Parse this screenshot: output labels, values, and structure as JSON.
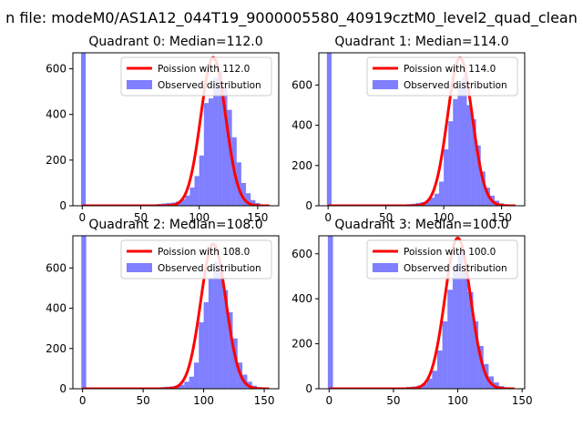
{
  "figure": {
    "suptitle": "n file: modeM0/AS1A12_044T19_9000005580_40919cztM0_level2_quad_clean"
  },
  "colors": {
    "hist": "#0000ff",
    "hist_alpha": 0.5,
    "fit": "#ff0000"
  },
  "chart_data": [
    {
      "type": "bar",
      "title": "Quadrant 0: Median=112.0",
      "xlim": [
        -8,
        168
      ],
      "ylim": [
        0,
        670
      ],
      "xticks": [
        0,
        50,
        100,
        150
      ],
      "yticks": [
        0,
        200,
        400,
        600
      ],
      "legend_position": "top-right",
      "fit_series": {
        "name": "Poission with 112.0",
        "mean": 112.0,
        "peak": 650
      },
      "hist_series": {
        "name": "Observed distribution",
        "bins": [
          [
            -1,
            3,
            670
          ],
          [
            0,
            60,
            0
          ],
          [
            60,
            64,
            5
          ],
          [
            64,
            68,
            8
          ],
          [
            68,
            72,
            10
          ],
          [
            72,
            76,
            12
          ],
          [
            76,
            80,
            14
          ],
          [
            80,
            84,
            18
          ],
          [
            84,
            88,
            28
          ],
          [
            88,
            92,
            45
          ],
          [
            92,
            96,
            80
          ],
          [
            96,
            100,
            130
          ],
          [
            100,
            104,
            220
          ],
          [
            104,
            108,
            450
          ],
          [
            108,
            112,
            470
          ],
          [
            112,
            116,
            560
          ],
          [
            116,
            120,
            590
          ],
          [
            120,
            124,
            520
          ],
          [
            124,
            128,
            420
          ],
          [
            128,
            132,
            300
          ],
          [
            132,
            136,
            190
          ],
          [
            136,
            140,
            100
          ],
          [
            140,
            144,
            55
          ],
          [
            144,
            148,
            25
          ],
          [
            148,
            152,
            12
          ],
          [
            152,
            156,
            6
          ],
          [
            156,
            160,
            3
          ]
        ]
      }
    },
    {
      "type": "bar",
      "title": "Quadrant 1: Median=114.0",
      "xlim": [
        -8,
        170
      ],
      "ylim": [
        0,
        760
      ],
      "xticks": [
        0,
        50,
        100,
        150
      ],
      "yticks": [
        0,
        200,
        400,
        600
      ],
      "legend_position": "top-right",
      "fit_series": {
        "name": "Poission with 114.0",
        "mean": 114.0,
        "peak": 735
      },
      "hist_series": {
        "name": "Observed distribution",
        "bins": [
          [
            -1,
            3,
            760
          ],
          [
            0,
            64,
            0
          ],
          [
            64,
            68,
            5
          ],
          [
            68,
            72,
            8
          ],
          [
            72,
            76,
            10
          ],
          [
            76,
            80,
            14
          ],
          [
            80,
            84,
            18
          ],
          [
            84,
            88,
            25
          ],
          [
            88,
            92,
            40
          ],
          [
            92,
            96,
            60
          ],
          [
            96,
            100,
            120
          ],
          [
            100,
            104,
            280
          ],
          [
            104,
            108,
            420
          ],
          [
            108,
            112,
            530
          ],
          [
            112,
            116,
            600
          ],
          [
            116,
            120,
            640
          ],
          [
            120,
            124,
            500
          ],
          [
            124,
            128,
            430
          ],
          [
            128,
            132,
            300
          ],
          [
            132,
            136,
            170
          ],
          [
            136,
            140,
            90
          ],
          [
            140,
            144,
            50
          ],
          [
            144,
            148,
            25
          ],
          [
            148,
            152,
            12
          ],
          [
            152,
            156,
            6
          ]
        ]
      }
    },
    {
      "type": "bar",
      "title": "Quadrant 2: Median=108.0",
      "xlim": [
        -8,
        162
      ],
      "ylim": [
        0,
        760
      ],
      "xticks": [
        0,
        50,
        100,
        150
      ],
      "yticks": [
        0,
        200,
        400,
        600
      ],
      "legend_position": "top-right",
      "fit_series": {
        "name": "Poission with 108.0",
        "mean": 108.0,
        "peak": 720
      },
      "hist_series": {
        "name": "Observed distribution",
        "bins": [
          [
            -1,
            3,
            760
          ],
          [
            0,
            60,
            0
          ],
          [
            60,
            64,
            5
          ],
          [
            64,
            68,
            8
          ],
          [
            68,
            72,
            10
          ],
          [
            72,
            76,
            12
          ],
          [
            76,
            80,
            15
          ],
          [
            80,
            84,
            20
          ],
          [
            84,
            88,
            35
          ],
          [
            88,
            92,
            60
          ],
          [
            92,
            96,
            130
          ],
          [
            96,
            100,
            330
          ],
          [
            100,
            104,
            430
          ],
          [
            104,
            108,
            550
          ],
          [
            108,
            112,
            630
          ],
          [
            112,
            116,
            580
          ],
          [
            116,
            120,
            490
          ],
          [
            120,
            124,
            380
          ],
          [
            124,
            128,
            250
          ],
          [
            128,
            132,
            130
          ],
          [
            132,
            136,
            70
          ],
          [
            136,
            140,
            35
          ],
          [
            140,
            144,
            15
          ],
          [
            144,
            148,
            8
          ],
          [
            148,
            152,
            4
          ]
        ]
      }
    },
    {
      "type": "bar",
      "title": "Quadrant 3: Median=100.0",
      "xlim": [
        -8,
        152
      ],
      "ylim": [
        0,
        680
      ],
      "xticks": [
        0,
        50,
        100,
        150
      ],
      "yticks": [
        0,
        200,
        400,
        600
      ],
      "legend_position": "top-right",
      "fit_series": {
        "name": "Poission with 100.0",
        "mean": 100.0,
        "peak": 670
      },
      "hist_series": {
        "name": "Observed distribution",
        "bins": [
          [
            -1,
            3,
            680
          ],
          [
            0,
            56,
            0
          ],
          [
            56,
            60,
            5
          ],
          [
            60,
            64,
            8
          ],
          [
            64,
            68,
            10
          ],
          [
            68,
            72,
            14
          ],
          [
            72,
            76,
            22
          ],
          [
            76,
            80,
            45
          ],
          [
            80,
            84,
            80
          ],
          [
            84,
            88,
            170
          ],
          [
            88,
            92,
            300
          ],
          [
            92,
            96,
            440
          ],
          [
            96,
            100,
            540
          ],
          [
            100,
            104,
            610
          ],
          [
            104,
            108,
            520
          ],
          [
            108,
            112,
            430
          ],
          [
            112,
            116,
            300
          ],
          [
            116,
            120,
            190
          ],
          [
            120,
            124,
            110
          ],
          [
            124,
            128,
            55
          ],
          [
            128,
            132,
            28
          ],
          [
            132,
            136,
            12
          ],
          [
            136,
            140,
            5
          ]
        ]
      }
    }
  ]
}
